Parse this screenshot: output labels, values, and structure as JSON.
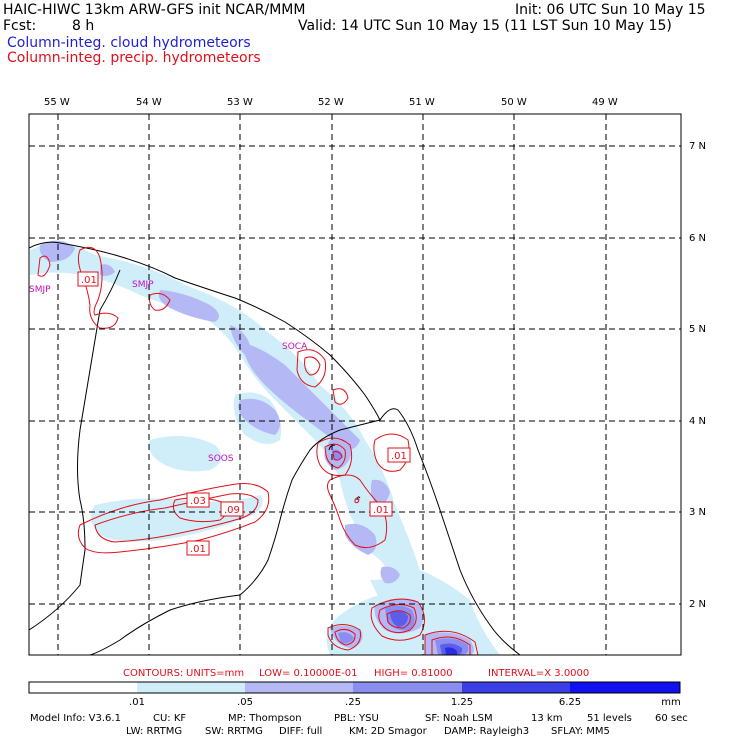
{
  "header": {
    "model_line": "HAIC-HIWC 13km ARW-GFS init   NCAR/MMM",
    "init_line": "Init: 06 UTC Sun 10 May 15",
    "fcst_label": "Fcst:",
    "fcst_value": "8 h",
    "valid_line": "Valid: 14 UTC Sun 10 May 15 (11 LST Sun 10 May 15)",
    "field_cloud": "Column-integ. cloud hydrometeors",
    "field_precip": "Column-integ. precip. hydrometeors"
  },
  "map": {
    "lon_labels": [
      "55 W",
      "54 W",
      "53 W",
      "52 W",
      "51 W",
      "50 W",
      "49 W"
    ],
    "lat_labels": [
      "7 N",
      "6 N",
      "5 N",
      "4 N",
      "3 N",
      "2 N"
    ],
    "stations": [
      "SMJP",
      "SMJP_hidden",
      "SOCA",
      "SOOS"
    ],
    "station_labels": {
      "smjp": "SMJP",
      "smpm": "SMJP",
      "soca": "SOCA",
      "soos": "SOOS"
    },
    "contour_labels": [
      ".01",
      ".01",
      ".03",
      ".09",
      ".01",
      ".01"
    ]
  },
  "contours_info": {
    "label": "CONTOURS:",
    "units": "UNITS=mm",
    "low": "LOW= 0.10000E-01",
    "high": "HIGH= 0.81000",
    "interval": "INTERVAL=X  3.0000"
  },
  "colorbar": {
    "ticks": [
      ".01",
      ".05",
      ".25",
      "1.25",
      "6.25"
    ],
    "unit": "mm",
    "colors": [
      "#ffffff",
      "#cfeefa",
      "#b4b9f5",
      "#8a8ef0",
      "#5a5ee8",
      "#3030e0",
      "#1010f0"
    ]
  },
  "footer": {
    "line1": {
      "model_info": "Model Info: V3.6.1",
      "cu": "CU: KF",
      "mp": "MP: Thompson",
      "pbl": "PBL: YSU",
      "sf": "SF: Noah LSM",
      "res": "13 km",
      "levels": "51 levels",
      "dt": "60 sec"
    },
    "line2": {
      "lw": "LW: RRTMG",
      "sw": "SW: RRTMG",
      "diff": "DIFF: full",
      "km": "KM: 2D Smagor",
      "damp": "DAMP: Rayleigh3",
      "sflay": "SFLAY: MM5"
    }
  }
}
